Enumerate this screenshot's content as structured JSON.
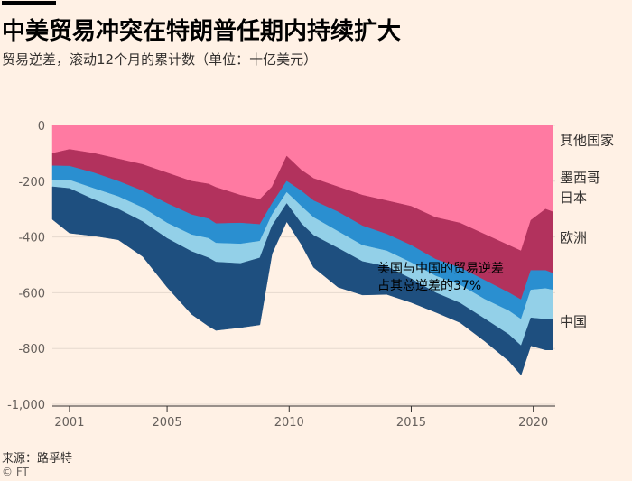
{
  "header": {
    "title": "中美贸易冲突在特朗普任期内持续扩大",
    "subtitle": "贸易逆差，滚动12个月的累计数（单位：十亿美元）"
  },
  "footer": {
    "source": "来源：路孚特",
    "credit": "© FT"
  },
  "colors": {
    "background": "#fff1e5",
    "grid": "#e6d9ce",
    "其他国家": "#1e4f7f",
    "墨西哥": "#93d0e8",
    "日本": "#2a8fd0",
    "欧洲": "#b2325d",
    "中国": "#ff7aa2"
  },
  "chart_data": {
    "type": "area",
    "stacked": true,
    "stack_order": [
      "中国",
      "欧洲",
      "日本",
      "墨西哥",
      "其他国家"
    ],
    "xlim": [
      2000.3,
      2020.9
    ],
    "ylim": [
      -1000,
      0
    ],
    "y_ticks": [
      0,
      -200,
      -400,
      -600,
      -800,
      -1000
    ],
    "y_tick_labels": [
      "0",
      "-200",
      "-400",
      "-600",
      "-800",
      "-1,000"
    ],
    "x_ticks": [
      2001,
      2005,
      2010,
      2015,
      2020
    ],
    "x_tick_labels": [
      "2001",
      "2005",
      "2010",
      "2015",
      "2020"
    ],
    "grid": true,
    "legend_placement": "right (direct labels)",
    "x": [
      2000.3,
      2001,
      2002,
      2003,
      2004,
      2005,
      2006,
      2006.7,
      2007,
      2008,
      2008.8,
      2009.3,
      2009.9,
      2010.5,
      2011,
      2012,
      2013,
      2014,
      2015,
      2016,
      2017,
      2018,
      2019,
      2019.5,
      2019.9,
      2020.5,
      2020.8
    ],
    "series": [
      {
        "name": "中国",
        "values": [
          -100,
          -86,
          -100,
          -120,
          -140,
          -170,
          -200,
          -210,
          -222,
          -250,
          -265,
          -220,
          -110,
          -160,
          -190,
          -220,
          -250,
          -270,
          -290,
          -330,
          -350,
          -390,
          -430,
          -450,
          -340,
          -300,
          -310
        ]
      },
      {
        "name": "欧洲",
        "values": [
          -45,
          -60,
          -70,
          -80,
          -95,
          -110,
          -120,
          -125,
          -130,
          -100,
          -90,
          -60,
          -90,
          -75,
          -80,
          -90,
          -110,
          -120,
          -140,
          -150,
          -160,
          -165,
          -170,
          -175,
          -180,
          -220,
          -220
        ]
      },
      {
        "name": "日本",
        "values": [
          -50,
          -50,
          -56,
          -55,
          -60,
          -70,
          -72,
          -70,
          -70,
          -75,
          -60,
          -40,
          -40,
          -55,
          -60,
          -70,
          -70,
          -60,
          -62,
          -60,
          -62,
          -68,
          -65,
          -70,
          -70,
          -65,
          -60
        ]
      },
      {
        "name": "墨西哥",
        "values": [
          -25,
          -30,
          -40,
          -45,
          -50,
          -55,
          -60,
          -70,
          -68,
          -70,
          -60,
          -40,
          -40,
          -62,
          -64,
          -60,
          -58,
          -56,
          -58,
          -60,
          -65,
          -70,
          -85,
          -95,
          -100,
          -110,
          -105
        ]
      },
      {
        "name": "其他国家",
        "values": [
          -117,
          -160,
          -130,
          -110,
          -125,
          -175,
          -225,
          -245,
          -245,
          -230,
          -240,
          -100,
          -65,
          -75,
          -115,
          -140,
          -120,
          -100,
          -85,
          -70,
          -70,
          -80,
          -95,
          -105,
          -100,
          -110,
          -110
        ]
      }
    ],
    "annotations": [
      {
        "text": "美国与中国的贸易逆差",
        "line": 1
      },
      {
        "text": "占其总逆差的37%",
        "line": 2
      }
    ]
  }
}
